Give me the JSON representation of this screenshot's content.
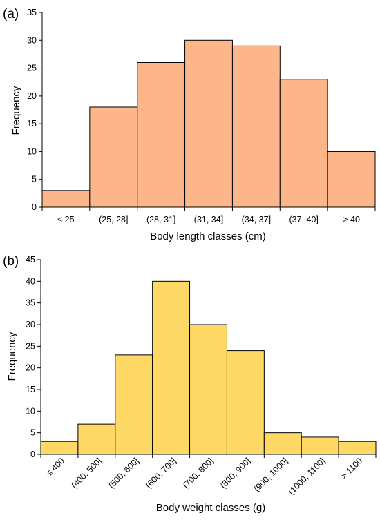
{
  "chart_data": [
    {
      "type": "bar",
      "panel_label": "(a)",
      "title": "",
      "xlabel": "Body length classes (cm)",
      "ylabel": "Frequency",
      "categories": [
        "≤ 25",
        "(25, 28]",
        "(28, 31]",
        "(31, 34]",
        "(34, 37]",
        "(37, 40]",
        "> 40"
      ],
      "values": [
        3,
        18,
        26,
        30,
        29,
        23,
        10
      ],
      "ylim": [
        0,
        35
      ],
      "yticks": [
        0,
        5,
        10,
        15,
        20,
        25,
        30,
        35
      ],
      "bar_color": "#FDB68A",
      "rotate_x_labels": false,
      "grid": false
    },
    {
      "type": "bar",
      "panel_label": "(b)",
      "title": "",
      "xlabel": "Body weight classes (g)",
      "ylabel": "Frequency",
      "categories": [
        "≤ 400",
        "(400, 500]",
        "(500, 600]",
        "(600, 700]",
        "(700, 800]",
        "(800, 900]",
        "(900, 1000]",
        "(1000, 1100]",
        "> 1100"
      ],
      "values": [
        3,
        7,
        23,
        40,
        30,
        24,
        5,
        4,
        3
      ],
      "ylim": [
        0,
        45
      ],
      "yticks": [
        0,
        5,
        10,
        15,
        20,
        25,
        30,
        35,
        40,
        45
      ],
      "bar_color": "#FFD966",
      "rotate_x_labels": true,
      "grid": false
    }
  ]
}
